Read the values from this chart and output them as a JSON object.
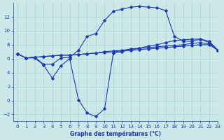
{
  "background_color": "#cce8e8",
  "grid_color": "#aad0d0",
  "line_color": "#1a3ab8",
  "xlabel": "Graphe des températures (°C)",
  "xlabel_color": "#1a3ab8",
  "xlim": [
    -0.5,
    23
  ],
  "ylim": [
    -3,
    14
  ],
  "yticks": [
    -2,
    0,
    2,
    4,
    6,
    8,
    10,
    12
  ],
  "xticks": [
    0,
    1,
    2,
    3,
    4,
    5,
    6,
    7,
    8,
    9,
    10,
    11,
    12,
    13,
    14,
    15,
    16,
    17,
    18,
    19,
    20,
    21,
    22,
    23
  ],
  "series": {
    "line1_x": [
      0,
      1,
      2,
      3,
      4,
      5,
      6,
      7,
      8,
      9,
      10,
      11,
      12,
      13,
      14,
      15,
      16,
      17,
      18,
      19,
      20,
      21,
      22,
      23
    ],
    "line1_y": [
      6.7,
      6.1,
      6.2,
      5.2,
      5.2,
      6.1,
      6.2,
      7.2,
      9.2,
      9.6,
      11.5,
      12.8,
      13.1,
      13.4,
      13.5,
      13.4,
      13.3,
      12.9,
      9.2,
      8.5,
      8.5,
      8.8,
      8.3,
      7.2
    ],
    "line2_x": [
      0,
      1,
      2,
      3,
      4,
      5,
      6,
      7,
      8,
      9,
      10,
      11,
      12,
      13,
      14,
      15,
      16,
      17,
      18,
      19,
      20,
      21,
      22,
      23
    ],
    "line2_y": [
      6.7,
      6.1,
      6.1,
      5.1,
      3.2,
      5.0,
      6.0,
      0.1,
      -1.8,
      -2.3,
      -1.2,
      6.8,
      7.0,
      7.3,
      7.5,
      7.8,
      8.0,
      8.3,
      8.6,
      8.7,
      8.8,
      8.8,
      8.5,
      7.2
    ],
    "line3_x": [
      0,
      1,
      2,
      3,
      4,
      5,
      6,
      7,
      8,
      9,
      10,
      11,
      12,
      13,
      14,
      15,
      16,
      17,
      18,
      19,
      20,
      21,
      22,
      23
    ],
    "line3_y": [
      6.7,
      6.1,
      6.2,
      6.3,
      6.4,
      6.5,
      6.5,
      6.6,
      6.7,
      6.8,
      7.0,
      7.1,
      7.2,
      7.4,
      7.5,
      7.6,
      7.7,
      7.8,
      7.9,
      8.0,
      8.2,
      8.3,
      8.1,
      7.2
    ],
    "line4_x": [
      0,
      1,
      2,
      3,
      4,
      5,
      6,
      7,
      8,
      9,
      10,
      11,
      12,
      13,
      14,
      15,
      16,
      17,
      18,
      19,
      20,
      21,
      22,
      23
    ],
    "line4_y": [
      6.7,
      6.1,
      6.2,
      6.3,
      6.4,
      6.5,
      6.5,
      6.6,
      6.7,
      6.8,
      6.9,
      7.0,
      7.1,
      7.2,
      7.3,
      7.4,
      7.5,
      7.6,
      7.7,
      7.8,
      7.9,
      8.0,
      8.0,
      7.2
    ]
  }
}
